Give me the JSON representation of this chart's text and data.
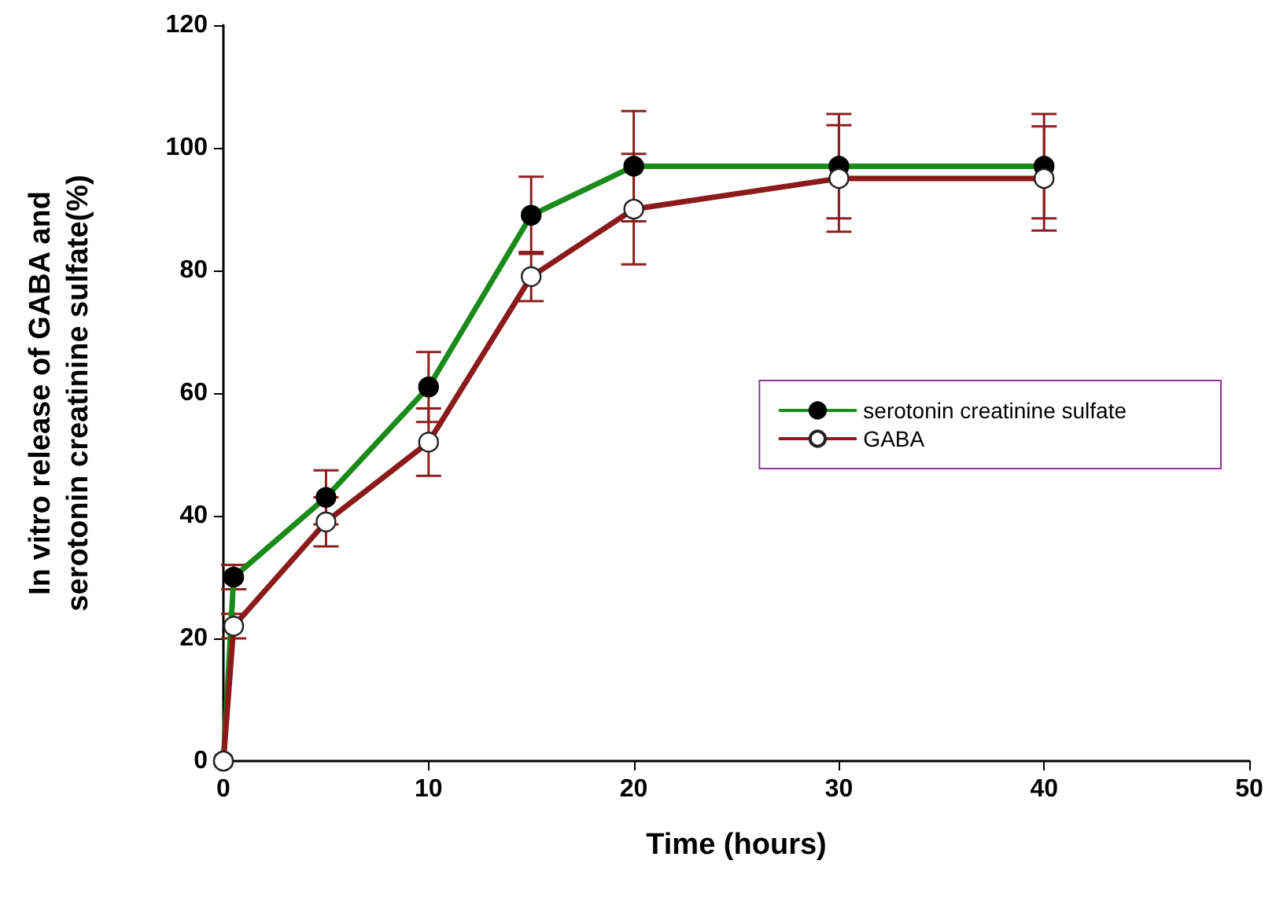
{
  "chart_data": {
    "type": "line",
    "xlabel": "Time (hours)",
    "ylabel": "In vitro release of GABA and\nserotonin creatinine sulfate(%)",
    "x": [
      0,
      0.5,
      5,
      10,
      15,
      20,
      30,
      40
    ],
    "series": [
      {
        "name": "serotonin creatinine sulfate",
        "color": "#1a8a1a",
        "values": [
          0,
          30,
          43,
          61,
          89,
          97,
          97,
          97
        ],
        "errors": [
          null,
          2,
          4.4,
          5.7,
          6.3,
          9,
          8.5,
          8.5
        ]
      },
      {
        "name": "GABA",
        "color": "#8b1a1a",
        "values": [
          0,
          22,
          39,
          52,
          79,
          90,
          95,
          95
        ],
        "errors": [
          null,
          2,
          4,
          5.5,
          4,
          9,
          8.7,
          8.5
        ]
      }
    ],
    "xlim": [
      0,
      50
    ],
    "xticks": [
      0,
      10,
      20,
      30,
      40,
      50
    ],
    "ylim": [
      0,
      120
    ],
    "yticks": [
      0,
      20,
      40,
      60,
      80,
      100,
      120
    ],
    "grid": false,
    "legend": "right",
    "marker": "circle",
    "line_style": "solid"
  }
}
